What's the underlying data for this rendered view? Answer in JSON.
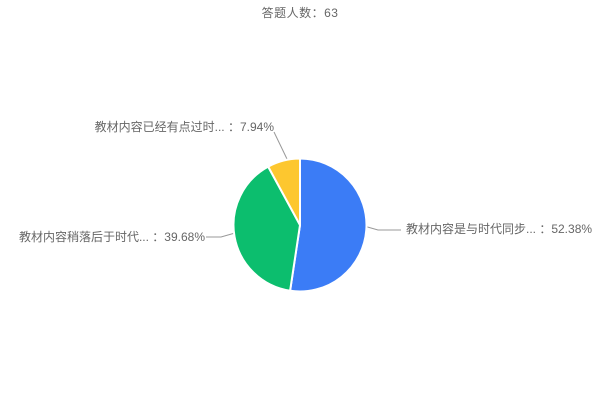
{
  "chart_data": {
    "type": "pie",
    "title": "答题人数：63",
    "respondent_count": 63,
    "background_color": "#ffffff",
    "text_color": "#666666",
    "leader_line_color": "#999999",
    "legend": "none",
    "slices": [
      {
        "label": "教材内容是与时代同步...",
        "percent": "52.38%",
        "display": "教材内容是与时代同步... ：52.38%",
        "value": 52.38,
        "color": "#3B7CF6"
      },
      {
        "label": "教材内容稍落后于时代...",
        "percent": "39.68%",
        "display": "教材内容稍落后于时代... ：39.68%",
        "value": 39.68,
        "color": "#0CBE6E"
      },
      {
        "label": "教材内容已经有点过时...",
        "percent": "7.94%",
        "display": "教材内容已经有点过时... ：7.94%",
        "value": 7.94,
        "color": "#FDC72F"
      }
    ]
  }
}
